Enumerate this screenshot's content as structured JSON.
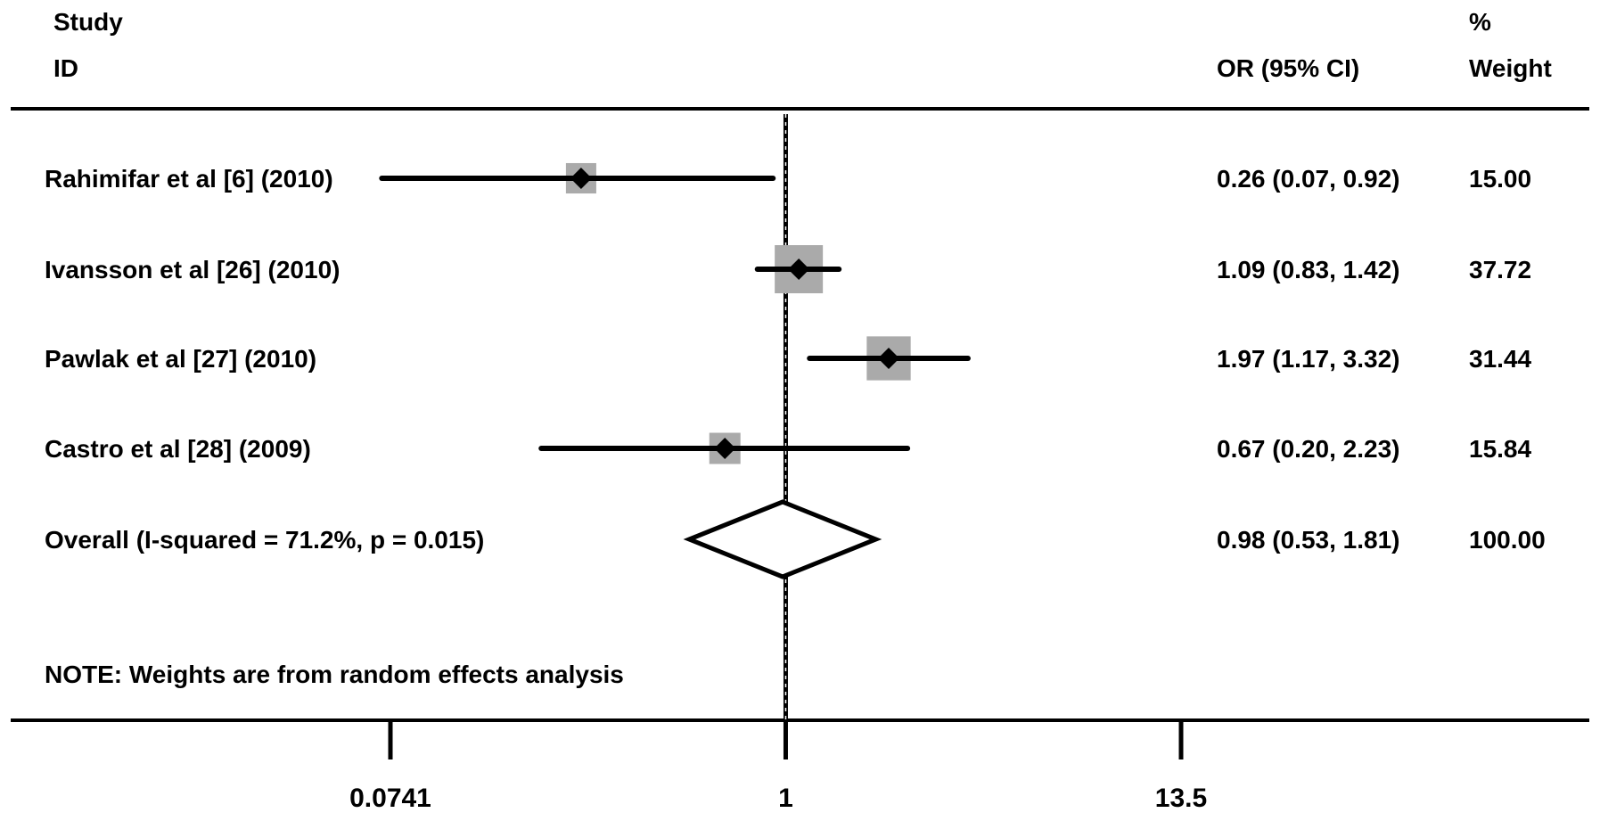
{
  "chart_data": {
    "type": "forest",
    "scale": "log",
    "header": {
      "study_line1": "Study",
      "study_line2": "ID",
      "or_label": "OR (95% CI)",
      "weight_line1": "%",
      "weight_line2": "Weight"
    },
    "studies": [
      {
        "label": "Rahimifar et al [6] (2010)",
        "or": 0.26,
        "lower": 0.07,
        "upper": 0.92,
        "or_text": "0.26 (0.07, 0.92)",
        "weight": 15.0,
        "weight_text": "15.00"
      },
      {
        "label": "Ivansson et al [26] (2010)",
        "or": 1.09,
        "lower": 0.83,
        "upper": 1.42,
        "or_text": "1.09 (0.83, 1.42)",
        "weight": 37.72,
        "weight_text": "37.72"
      },
      {
        "label": "Pawlak et al [27] (2010)",
        "or": 1.97,
        "lower": 1.17,
        "upper": 3.32,
        "or_text": "1.97 (1.17, 3.32)",
        "weight": 31.44,
        "weight_text": "31.44"
      },
      {
        "label": "Castro et al [28] (2009)",
        "or": 0.67,
        "lower": 0.2,
        "upper": 2.23,
        "or_text": "0.67 (0.20, 2.23)",
        "weight": 15.84,
        "weight_text": "15.84"
      }
    ],
    "overall": {
      "label": "Overall  (I-squared = 71.2%, p = 0.015)",
      "or": 0.98,
      "lower": 0.53,
      "upper": 1.81,
      "or_text": "0.98 (0.53, 1.81)",
      "weight_text": "100.00"
    },
    "note": "NOTE: Weights are from random effects analysis",
    "null_value": 1,
    "xlim": [
      0.0741,
      13.5
    ],
    "ticks": [
      {
        "value": 0.0741,
        "label": "0.0741"
      },
      {
        "value": 1,
        "label": "1"
      },
      {
        "value": 13.5,
        "label": "13.5"
      }
    ],
    "colors": {
      "box": "#aaaaaa",
      "line": "#000000"
    }
  }
}
